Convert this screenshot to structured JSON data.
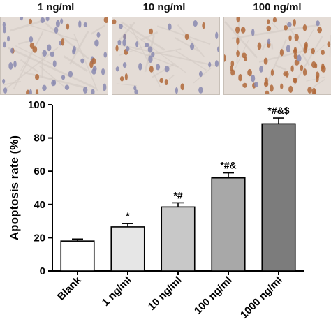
{
  "panels": [
    {
      "label": "1 ng/ml",
      "cell_count": 55,
      "stained_fraction": 0.18
    },
    {
      "label": "10 ng/ml",
      "cell_count": 40,
      "stained_fraction": 0.45
    },
    {
      "label": "100 ng/ml",
      "cell_count": 70,
      "stained_fraction": 0.8
    }
  ],
  "colors": {
    "background_tissue": "#e4dcd6",
    "nucleus_blue": "#8a8ab0",
    "nucleus_brown": "#b0683a"
  },
  "chart_data": {
    "type": "bar",
    "categories": [
      "Blank",
      "1 ng/ml",
      "10 ng/ml",
      "100 ng/ml",
      "1000 ng/ml"
    ],
    "values": [
      18,
      26.5,
      38.5,
      56,
      88.5
    ],
    "errors": [
      1.2,
      2.0,
      2.5,
      3.0,
      3.5
    ],
    "annotations": [
      "",
      "*",
      "*#",
      "*#&",
      "*#&$"
    ],
    "bar_colors": [
      "#ffffff",
      "#e6e6e6",
      "#c8c8c8",
      "#a8a8a8",
      "#7c7c7c"
    ],
    "ylabel": "Apoptosis rate (%)",
    "xlabel": "",
    "ylim": [
      0,
      100
    ],
    "yticks": [
      0,
      20,
      40,
      60,
      80,
      100
    ],
    "grid": false
  }
}
